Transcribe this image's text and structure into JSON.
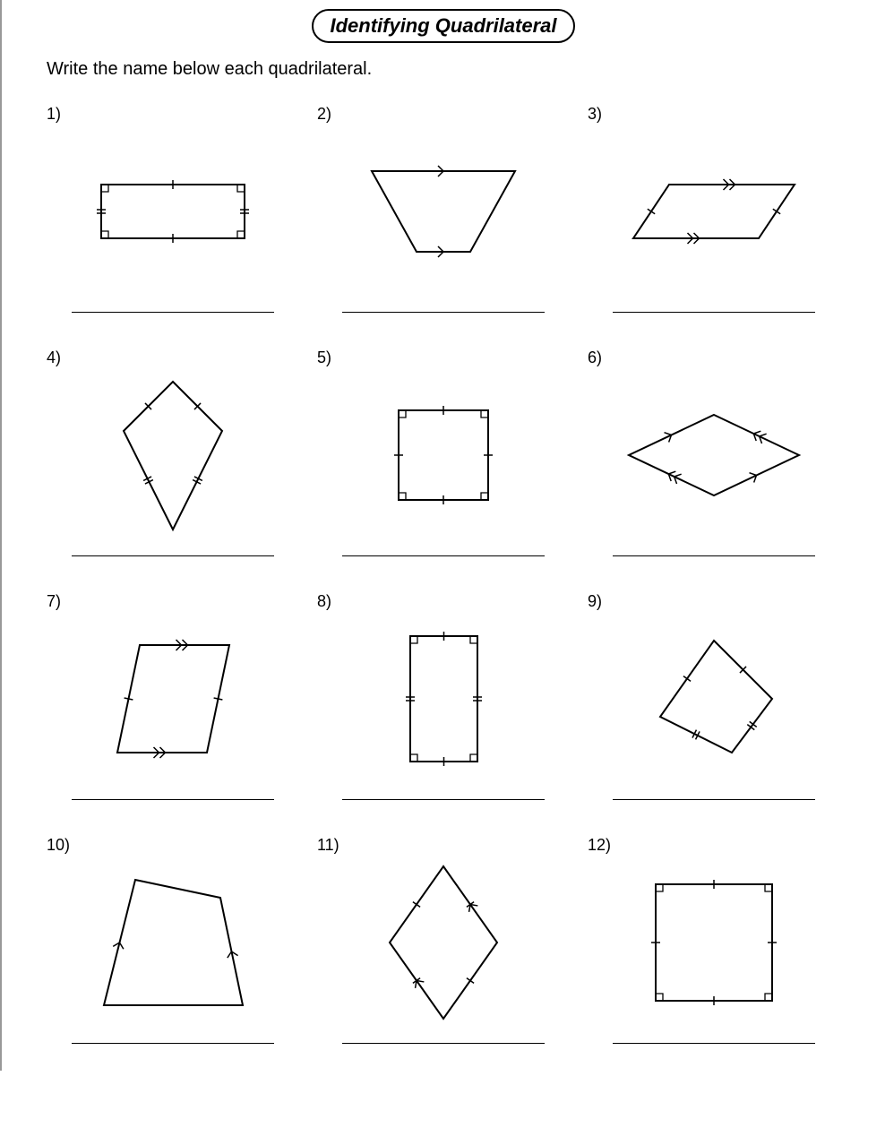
{
  "title": "Identifying Quadrilateral",
  "instruction": "Write the name below each quadrilateral.",
  "stroke": "#000000",
  "stroke_width": 2,
  "items": [
    {
      "n": "1)",
      "shape": "rectangle_wide"
    },
    {
      "n": "2)",
      "shape": "trapezoid_down"
    },
    {
      "n": "3)",
      "shape": "parallelogram"
    },
    {
      "n": "4)",
      "shape": "kite"
    },
    {
      "n": "5)",
      "shape": "square"
    },
    {
      "n": "6)",
      "shape": "rhombus_wide"
    },
    {
      "n": "7)",
      "shape": "parallelogram_slant"
    },
    {
      "n": "8)",
      "shape": "rectangle_tall"
    },
    {
      "n": "9)",
      "shape": "kite_tilt"
    },
    {
      "n": "10)",
      "shape": "trapezoid_up"
    },
    {
      "n": "11)",
      "shape": "rhombus_tall"
    },
    {
      "n": "12)",
      "shape": "square2"
    }
  ]
}
